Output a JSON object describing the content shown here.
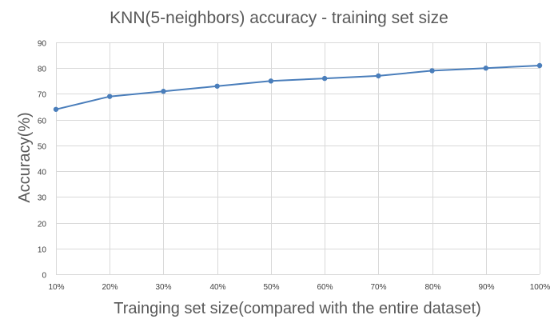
{
  "chart_data": {
    "type": "line",
    "title": "KNN(5-neighbors) accuracy - training set size",
    "xlabel": "Trainging set size(compared with the entire dataset)",
    "ylabel": "Accuracy(%)",
    "categories": [
      "10%",
      "20%",
      "30%",
      "40%",
      "50%",
      "60%",
      "70%",
      "80%",
      "90%",
      "100%"
    ],
    "series": [
      {
        "values": [
          64,
          69,
          71,
          73,
          75,
          76,
          77,
          79,
          80,
          81
        ],
        "color": "#4a7ebb"
      }
    ],
    "ylim": [
      0,
      90
    ],
    "yticks": [
      0,
      10,
      20,
      30,
      40,
      50,
      60,
      70,
      80,
      90
    ],
    "grid": "horizontal and vertical",
    "legend": "none"
  }
}
